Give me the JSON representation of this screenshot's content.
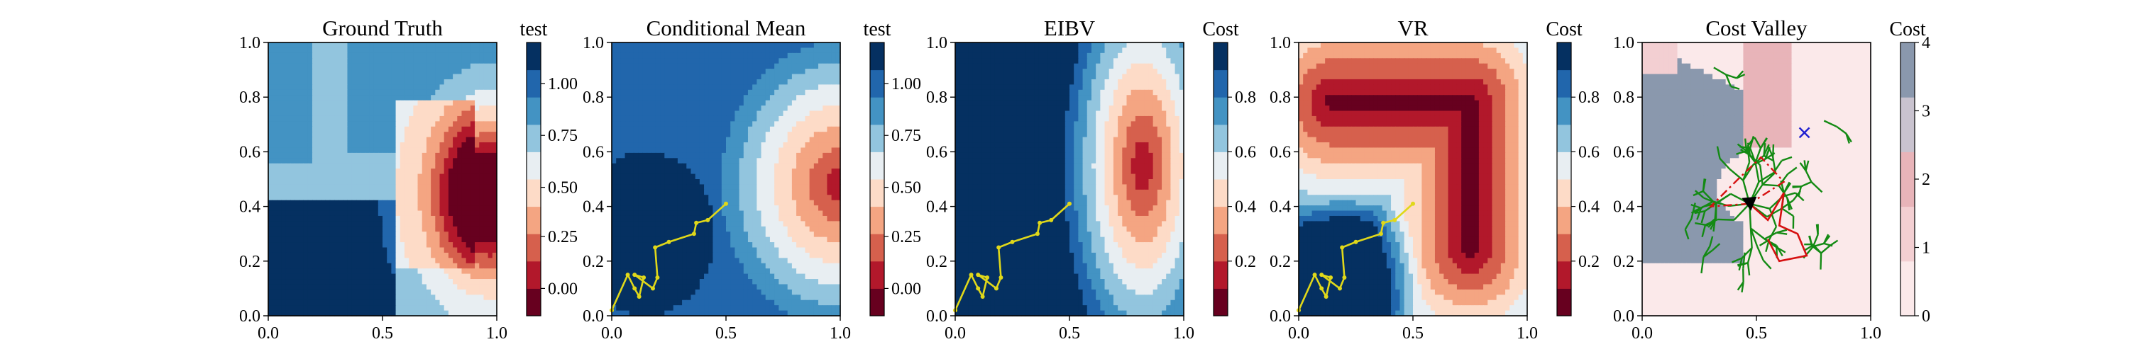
{
  "chart_data": [
    {
      "type": "heatmap",
      "title": "Ground Truth",
      "xlim": [
        0,
        1
      ],
      "ylim": [
        0,
        1
      ],
      "xticks": [
        "0.0",
        "0.5",
        "1.0"
      ],
      "yticks": [
        "0.0",
        "0.2",
        "0.4",
        "0.6",
        "0.8",
        "1.0"
      ],
      "colorbar": {
        "title": "test",
        "ticks": [
          "0.00",
          "0.25",
          "0.50",
          "0.75",
          "1.00"
        ],
        "colors": [
          "#67001f",
          "#b2182b",
          "#d6604d",
          "#f4a582",
          "#fddbc7",
          "#e8eef2",
          "#92c5de",
          "#4393c3",
          "#2166ac",
          "#053061"
        ]
      },
      "path": []
    },
    {
      "type": "heatmap",
      "title": "Conditional Mean",
      "xlim": [
        0,
        1
      ],
      "ylim": [
        0,
        1
      ],
      "xticks": [
        "0.0",
        "0.5",
        "1.0"
      ],
      "yticks": [
        "0.0",
        "0.2",
        "0.4",
        "0.6",
        "0.8",
        "1.0"
      ],
      "colorbar": {
        "title": "test",
        "ticks": [
          "0.00",
          "0.25",
          "0.50",
          "0.75",
          "1.00"
        ],
        "colors": [
          "#67001f",
          "#b2182b",
          "#d6604d",
          "#f4a582",
          "#fddbc7",
          "#e8eef2",
          "#92c5de",
          "#4393c3",
          "#2166ac",
          "#053061"
        ]
      },
      "path": [
        [
          0.0,
          0.02
        ],
        [
          0.07,
          0.15
        ],
        [
          0.1,
          0.1
        ],
        [
          0.12,
          0.07
        ],
        [
          0.14,
          0.14
        ],
        [
          0.1,
          0.15
        ],
        [
          0.18,
          0.1
        ],
        [
          0.2,
          0.14
        ],
        [
          0.19,
          0.25
        ],
        [
          0.25,
          0.27
        ],
        [
          0.36,
          0.3
        ],
        [
          0.37,
          0.34
        ],
        [
          0.42,
          0.35
        ],
        [
          0.5,
          0.41
        ]
      ]
    },
    {
      "type": "heatmap",
      "title": "EIBV",
      "xlim": [
        0,
        1
      ],
      "ylim": [
        0,
        1
      ],
      "xticks": [
        "0.0",
        "0.5",
        "1.0"
      ],
      "yticks": [
        "0.0",
        "0.2",
        "0.4",
        "0.6",
        "0.8",
        "1.0"
      ],
      "colorbar": {
        "title": "Cost",
        "ticks": [
          "0.2",
          "0.4",
          "0.6",
          "0.8"
        ],
        "colors": [
          "#67001f",
          "#b2182b",
          "#d6604d",
          "#f4a582",
          "#fddbc7",
          "#e8eef2",
          "#92c5de",
          "#4393c3",
          "#2166ac",
          "#053061"
        ]
      },
      "path": [
        [
          0.0,
          0.02
        ],
        [
          0.07,
          0.15
        ],
        [
          0.1,
          0.1
        ],
        [
          0.12,
          0.07
        ],
        [
          0.14,
          0.14
        ],
        [
          0.1,
          0.15
        ],
        [
          0.18,
          0.1
        ],
        [
          0.2,
          0.14
        ],
        [
          0.19,
          0.25
        ],
        [
          0.25,
          0.27
        ],
        [
          0.36,
          0.3
        ],
        [
          0.37,
          0.34
        ],
        [
          0.42,
          0.35
        ],
        [
          0.5,
          0.41
        ]
      ]
    },
    {
      "type": "heatmap",
      "title": "VR",
      "xlim": [
        0,
        1
      ],
      "ylim": [
        0,
        1
      ],
      "xticks": [
        "0.0",
        "0.5",
        "1.0"
      ],
      "yticks": [
        "0.0",
        "0.2",
        "0.4",
        "0.6",
        "0.8",
        "1.0"
      ],
      "colorbar": {
        "title": "Cost",
        "ticks": [
          "0.2",
          "0.4",
          "0.6",
          "0.8"
        ],
        "colors": [
          "#67001f",
          "#b2182b",
          "#d6604d",
          "#f4a582",
          "#fddbc7",
          "#e8eef2",
          "#92c5de",
          "#4393c3",
          "#2166ac",
          "#053061"
        ]
      },
      "path": [
        [
          0.0,
          0.02
        ],
        [
          0.07,
          0.15
        ],
        [
          0.1,
          0.1
        ],
        [
          0.12,
          0.07
        ],
        [
          0.14,
          0.14
        ],
        [
          0.1,
          0.15
        ],
        [
          0.18,
          0.1
        ],
        [
          0.2,
          0.14
        ],
        [
          0.19,
          0.25
        ],
        [
          0.25,
          0.27
        ],
        [
          0.36,
          0.3
        ],
        [
          0.37,
          0.34
        ],
        [
          0.42,
          0.35
        ],
        [
          0.5,
          0.41
        ]
      ]
    },
    {
      "type": "heatmap",
      "title": "Cost Valley",
      "xlim": [
        0,
        1
      ],
      "ylim": [
        0,
        1
      ],
      "xticks": [
        "0.0",
        "0.5",
        "1.0"
      ],
      "yticks": [
        "0.0",
        "0.2",
        "0.4",
        "0.6",
        "0.8",
        "1.0"
      ],
      "colorbar": {
        "title": "Cost",
        "ticks": [
          "0",
          "1",
          "2",
          "3",
          "4"
        ],
        "colors": [
          "#fbe9ea",
          "#f3cfd2",
          "#e8b4b9",
          "#c9c3cf",
          "#8a98ad"
        ]
      },
      "route": [
        [
          0.47,
          0.41
        ],
        [
          0.55,
          0.35
        ],
        [
          0.62,
          0.45
        ],
        [
          0.6,
          0.33
        ],
        [
          0.68,
          0.3
        ],
        [
          0.72,
          0.22
        ],
        [
          0.6,
          0.2
        ],
        [
          0.55,
          0.28
        ]
      ],
      "route_dashed": [
        [
          0.47,
          0.41
        ],
        [
          0.3,
          0.4
        ],
        [
          0.42,
          0.5
        ],
        [
          0.52,
          0.58
        ],
        [
          0.62,
          0.49
        ],
        [
          0.47,
          0.41
        ]
      ],
      "current": [
        0.47,
        0.41
      ],
      "target": [
        0.71,
        0.67
      ]
    }
  ]
}
